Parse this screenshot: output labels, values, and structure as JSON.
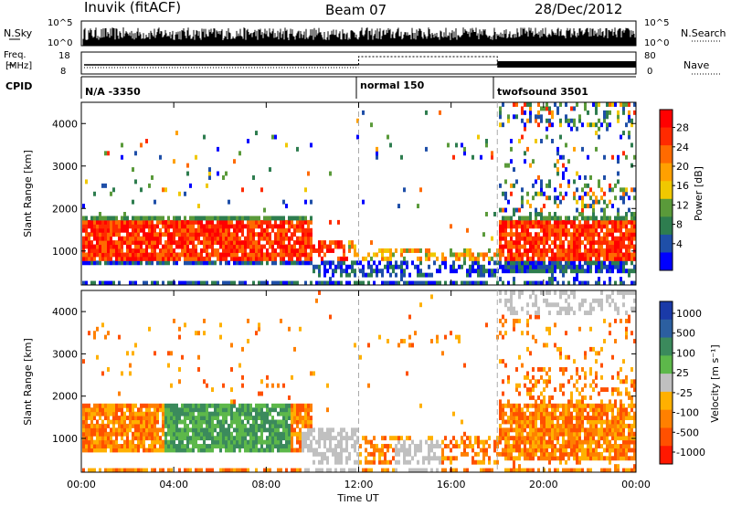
{
  "header": {
    "station": "Inuvik (fitACF)",
    "beam": "Beam 07",
    "date": "28/Dec/2012"
  },
  "labels": {
    "nsky": "N.Sky",
    "freq_line1": "Freq.",
    "freq_line2": "[MHz]",
    "cpid": "CPID",
    "nsearch": "N.Search",
    "nave": "Nave",
    "nsky_ticks": [
      "10^5",
      "10^0"
    ],
    "nsearch_ticks": [
      "10^5",
      "10^0"
    ],
    "freq_ticks": [
      "18",
      "8"
    ],
    "nave_ticks": [
      "80",
      "0"
    ]
  },
  "cpid_segments": [
    {
      "label": "N/A -3350",
      "start": 0,
      "end": 12
    },
    {
      "label": "normal 150",
      "start": 12,
      "end": 18
    },
    {
      "label": "twofsound 3501",
      "start": 18,
      "end": 24
    }
  ],
  "chart_data": [
    {
      "type": "heatmap",
      "name": "power",
      "xlabel": "",
      "ylabel": "Slant Range [km]",
      "xlim": [
        0,
        24
      ],
      "ylim": [
        200,
        4500
      ],
      "y_ticks": [
        1000,
        2000,
        3000,
        4000
      ],
      "colorbar": {
        "label": "Power [dB]",
        "ticks": [
          "4",
          "8",
          "12",
          "16",
          "20",
          "24",
          "28"
        ],
        "colors": [
          "#0000ff",
          "#1f4fa8",
          "#2e7d4f",
          "#5a9a3a",
          "#f0c800",
          "#ffa000",
          "#ff6a00",
          "#ff2a00",
          "#ff0000"
        ]
      }
    },
    {
      "type": "heatmap",
      "name": "velocity",
      "xlabel": "Time UT",
      "ylabel": "Slant Range [km]",
      "xlim": [
        0,
        24
      ],
      "ylim": [
        200,
        4500
      ],
      "y_ticks": [
        1000,
        2000,
        3000,
        4000
      ],
      "x_ticks": [
        "00:00",
        "04:00",
        "08:00",
        "12:00",
        "16:00",
        "20:00",
        "00:00"
      ],
      "colorbar": {
        "label": "Velocity [m s⁻¹]",
        "ticks": [
          "1000",
          "500",
          "100",
          "25",
          "-25",
          "-100",
          "-500",
          "-1000"
        ],
        "colors": [
          "#1a3aa8",
          "#2c5fa0",
          "#3b8a5c",
          "#5db84a",
          "#c0c0c0",
          "#ffb000",
          "#ff8000",
          "#ff5000",
          "#ff1800"
        ]
      }
    }
  ],
  "colors": {
    "grid_dash": "#aaaaaa",
    "green_dominant": "#3b8a5c",
    "orange_dominant": "#ff8000"
  }
}
